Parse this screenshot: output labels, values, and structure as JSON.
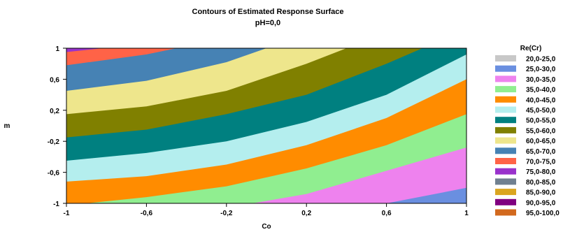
{
  "chart_data": {
    "type": "contour",
    "title": "Contours of Estimated Response Surface",
    "subtitle": "pH=0,0",
    "xlabel": "Co",
    "ylabel": "m",
    "xlim": [
      -1,
      1
    ],
    "ylim": [
      -1,
      1
    ],
    "x_ticks": [
      "-1",
      "-0,6",
      "-0,2",
      "0,2",
      "0,6",
      "1"
    ],
    "y_ticks": [
      "-1",
      "-0,6",
      "-0,2",
      "0,2",
      "0,6",
      "1"
    ],
    "x_tick_values": [
      -1,
      -0.6,
      -0.2,
      0.2,
      0.6,
      1
    ],
    "y_tick_values": [
      -1,
      -0.6,
      -0.2,
      0.2,
      0.6,
      1
    ],
    "legend_title": "Re(Cr)",
    "legend_position": "right",
    "levels": [
      {
        "label": "20,0-25,0",
        "color": "#c8c8c8"
      },
      {
        "label": "25,0-30,0",
        "color": "#6a8fe0"
      },
      {
        "label": "30,0-35,0",
        "color": "#ee82ee"
      },
      {
        "label": "35,0-40,0",
        "color": "#90ee90"
      },
      {
        "label": "40,0-45,0",
        "color": "#ff8c00"
      },
      {
        "label": "45,0-50,0",
        "color": "#b4eeee"
      },
      {
        "label": "50,0-55,0",
        "color": "#008080"
      },
      {
        "label": "55,0-60,0",
        "color": "#808000"
      },
      {
        "label": "60,0-65,0",
        "color": "#eee68c"
      },
      {
        "label": "65,0-70,0",
        "color": "#4682b4"
      },
      {
        "label": "70,0-75,0",
        "color": "#ff6347"
      },
      {
        "label": "75,0-80,0",
        "color": "#9932cc"
      },
      {
        "label": "80,0-85,0",
        "color": "#708090"
      },
      {
        "label": "85,0-90,0",
        "color": "#daa520"
      },
      {
        "label": "90,0-95,0",
        "color": "#800080"
      },
      {
        "label": "95,0-100,0",
        "color": "#d2691e"
      }
    ],
    "contour_boundaries": [
      {
        "level": 30,
        "m_at_co": [
          [
            0.6,
            -1.0
          ],
          [
            1.0,
            -0.8
          ]
        ]
      },
      {
        "level": 35,
        "m_at_co": [
          [
            -0.07,
            -1.0
          ],
          [
            0.2,
            -0.88
          ],
          [
            0.6,
            -0.58
          ],
          [
            1.0,
            -0.28
          ]
        ]
      },
      {
        "level": 40,
        "m_at_co": [
          [
            -0.9,
            -1.0
          ],
          [
            -0.6,
            -0.92
          ],
          [
            -0.2,
            -0.78
          ],
          [
            0.2,
            -0.55
          ],
          [
            0.6,
            -0.25
          ],
          [
            1.0,
            0.15
          ]
        ]
      },
      {
        "level": 45,
        "m_at_co": [
          [
            -1.0,
            -0.72
          ],
          [
            -0.6,
            -0.65
          ],
          [
            -0.2,
            -0.5
          ],
          [
            0.2,
            -0.25
          ],
          [
            0.6,
            0.1
          ],
          [
            1.0,
            0.6
          ]
        ]
      },
      {
        "level": 50,
        "m_at_co": [
          [
            -1.0,
            -0.45
          ],
          [
            -0.6,
            -0.35
          ],
          [
            -0.2,
            -0.2
          ],
          [
            0.2,
            0.05
          ],
          [
            0.6,
            0.4
          ],
          [
            1.0,
            0.92
          ]
        ]
      },
      {
        "level": 55,
        "m_at_co": [
          [
            -1.0,
            -0.15
          ],
          [
            -0.6,
            -0.05
          ],
          [
            -0.2,
            0.15
          ],
          [
            0.2,
            0.4
          ],
          [
            0.6,
            0.8
          ],
          [
            0.78,
            1.0
          ]
        ]
      },
      {
        "level": 60,
        "m_at_co": [
          [
            -1.0,
            0.15
          ],
          [
            -0.6,
            0.25
          ],
          [
            -0.2,
            0.45
          ],
          [
            0.2,
            0.8
          ],
          [
            0.4,
            1.0
          ]
        ]
      },
      {
        "level": 65,
        "m_at_co": [
          [
            -1.0,
            0.45
          ],
          [
            -0.6,
            0.58
          ],
          [
            -0.2,
            0.82
          ],
          [
            0.0,
            1.0
          ]
        ]
      },
      {
        "level": 70,
        "m_at_co": [
          [
            -1.0,
            0.78
          ],
          [
            -0.6,
            0.92
          ],
          [
            -0.45,
            1.0
          ]
        ]
      },
      {
        "level": 75,
        "m_at_co": [
          [
            -1.0,
            0.95
          ],
          [
            -0.82,
            1.0
          ]
        ]
      }
    ]
  }
}
